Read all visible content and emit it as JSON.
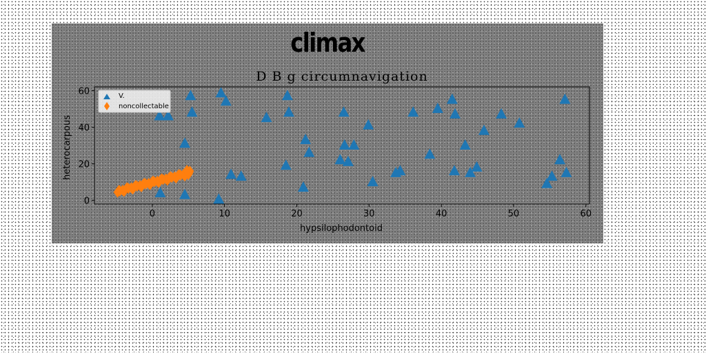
{
  "figure": {
    "suptitle": "climax"
  },
  "chart_data": {
    "type": "scatter",
    "title": "D B g circumnavigation",
    "xlabel": "hypsilophodontoid",
    "ylabel": "heterocarpous",
    "xlim": [
      -8,
      60.5
    ],
    "ylim": [
      -2,
      62
    ],
    "xticks": [
      0,
      10,
      20,
      30,
      40,
      50,
      60
    ],
    "yticks": [
      0,
      20,
      40,
      60
    ],
    "grid": false,
    "legend_position": "top-left",
    "colors": {
      "series_v": "#1f77b4",
      "series_noncollectable": "#ff7f0e",
      "figure_bg": "#808080"
    },
    "series": [
      {
        "name": "V",
        "legend_label": "V.",
        "marker": "triangle-up",
        "color": "#1f77b4",
        "points": [
          [
            1.0,
            46
          ],
          [
            2.2,
            46
          ],
          [
            5.3,
            57
          ],
          [
            5.5,
            48
          ],
          [
            4.5,
            31
          ],
          [
            4.5,
            3
          ],
          [
            1.1,
            4
          ],
          [
            9.5,
            58.5
          ],
          [
            10.2,
            54
          ],
          [
            9.2,
            0.5
          ],
          [
            10.9,
            14
          ],
          [
            12.3,
            13
          ],
          [
            15.8,
            45
          ],
          [
            18.7,
            57
          ],
          [
            18.9,
            48
          ],
          [
            18.5,
            19
          ],
          [
            21.2,
            33
          ],
          [
            21.7,
            26
          ],
          [
            20.9,
            7
          ],
          [
            26.5,
            48
          ],
          [
            26.6,
            30
          ],
          [
            27.9,
            30
          ],
          [
            26.0,
            22
          ],
          [
            27.1,
            21
          ],
          [
            29.9,
            41
          ],
          [
            30.5,
            10
          ],
          [
            33.7,
            15
          ],
          [
            34.3,
            16
          ],
          [
            36.1,
            48
          ],
          [
            38.4,
            25
          ],
          [
            39.5,
            50
          ],
          [
            41.5,
            55
          ],
          [
            41.9,
            47
          ],
          [
            41.8,
            16
          ],
          [
            43.3,
            30
          ],
          [
            44.0,
            15
          ],
          [
            44.9,
            18
          ],
          [
            45.9,
            38
          ],
          [
            48.3,
            47
          ],
          [
            50.8,
            42
          ],
          [
            54.6,
            9
          ],
          [
            55.3,
            13
          ],
          [
            56.4,
            22
          ],
          [
            57.1,
            55
          ],
          [
            57.3,
            15
          ]
        ]
      },
      {
        "name": "noncollectable",
        "legend_label": "noncollectable",
        "marker": "diamond",
        "color": "#ff7f0e",
        "points": [
          [
            -4.8,
            4.5
          ],
          [
            -4.5,
            5.2
          ],
          [
            -4.1,
            5.6
          ],
          [
            -3.7,
            6.0
          ],
          [
            -3.3,
            6.6
          ],
          [
            -2.9,
            6.9
          ],
          [
            -2.5,
            7.3
          ],
          [
            -2.1,
            7.8
          ],
          [
            -1.7,
            8.1
          ],
          [
            -1.3,
            8.6
          ],
          [
            -0.9,
            9.0
          ],
          [
            -0.5,
            9.3
          ],
          [
            -0.1,
            9.8
          ],
          [
            0.3,
            10.2
          ],
          [
            0.7,
            10.5
          ],
          [
            1.1,
            11.0
          ],
          [
            1.5,
            11.4
          ],
          [
            1.9,
            11.7
          ],
          [
            2.3,
            12.2
          ],
          [
            2.7,
            12.6
          ],
          [
            3.1,
            12.9
          ],
          [
            3.5,
            13.4
          ],
          [
            3.9,
            13.8
          ],
          [
            4.3,
            14.1
          ],
          [
            4.7,
            14.6
          ],
          [
            5.1,
            15.0
          ],
          [
            5.0,
            14.2
          ],
          [
            -4.6,
            5.5
          ],
          [
            -3.9,
            4.9
          ],
          [
            -2.7,
            6.2
          ],
          [
            -1.5,
            7.4
          ],
          [
            -0.3,
            8.6
          ],
          [
            0.9,
            9.8
          ],
          [
            2.1,
            11.0
          ],
          [
            3.3,
            12.2
          ],
          [
            4.5,
            13.3
          ],
          [
            -3.5,
            7.0
          ],
          [
            -2.3,
            8.2
          ],
          [
            -1.1,
            9.4
          ],
          [
            0.1,
            10.6
          ],
          [
            1.3,
            11.8
          ],
          [
            2.5,
            13.0
          ],
          [
            3.7,
            14.2
          ],
          [
            4.9,
            15.4
          ],
          [
            5.2,
            16.0
          ],
          [
            4.8,
            16.4
          ]
        ]
      }
    ]
  }
}
